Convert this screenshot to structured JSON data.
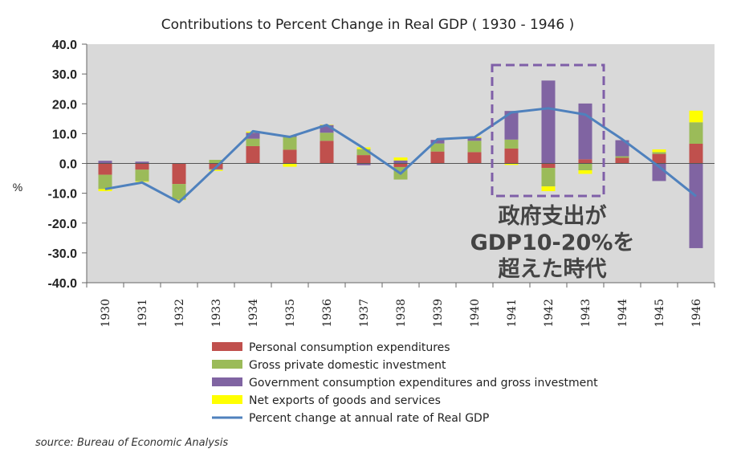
{
  "chart_data": {
    "type": "bar",
    "subtype": "stacked-bar-with-line",
    "title": "Contributions to Percent Change in Real GDP ( 1930 - 1946 )",
    "ylabel": "%",
    "xlabel": "",
    "ylim": [
      -40,
      40
    ],
    "yticks": [
      40,
      30,
      20,
      10,
      0,
      -10,
      -20,
      -30,
      -40
    ],
    "ytick_labels": [
      "40.0",
      "30.0",
      "20.0",
      "10.0",
      "0.0",
      "-10.0",
      "-20.0",
      "-30.0",
      "-40.0"
    ],
    "categories": [
      "1930",
      "1931",
      "1932",
      "1933",
      "1934",
      "1935",
      "1936",
      "1937",
      "1938",
      "1939",
      "1940",
      "1941",
      "1942",
      "1943",
      "1944",
      "1945",
      "1946"
    ],
    "series": [
      {
        "name": "Personal consumption expenditures",
        "color": "#c0504d",
        "values": [
          -3.8,
          -2.1,
          -6.9,
          -1.8,
          5.8,
          4.6,
          7.6,
          2.8,
          -1.2,
          4.0,
          3.8,
          5.0,
          -1.5,
          1.4,
          1.9,
          3.2,
          6.6
        ]
      },
      {
        "name": "Gross private domestic investment",
        "color": "#9bbb59",
        "values": [
          -4.8,
          -3.9,
          -5.1,
          1.2,
          2.5,
          4.3,
          2.7,
          2.0,
          -4.2,
          2.7,
          3.8,
          3.0,
          -6.2,
          -2.3,
          0.5,
          0.6,
          7.2
        ]
      },
      {
        "name": "Government consumption expenditures and gross investment",
        "color": "#8064a2",
        "values": [
          0.9,
          0.6,
          -0.1,
          -0.3,
          2.0,
          0.4,
          2.6,
          -0.6,
          1.0,
          1.2,
          1.0,
          9.6,
          27.8,
          18.7,
          5.4,
          -5.9,
          -28.4
        ]
      },
      {
        "name": "Net exports of goods and services",
        "color": "#ffff00",
        "values": [
          -0.7,
          -0.2,
          -0.2,
          -0.4,
          0.4,
          -1.1,
          0.1,
          0.6,
          1.0,
          0.0,
          0.3,
          -0.5,
          -1.6,
          -1.2,
          -0.1,
          0.9,
          3.9
        ]
      }
    ],
    "line": {
      "name": "Percent change at annual rate of Real GDP",
      "color": "#4f81bd",
      "values": [
        -8.6,
        -6.4,
        -13.0,
        -1.3,
        10.8,
        8.9,
        12.9,
        5.1,
        -3.4,
        8.1,
        8.8,
        17.1,
        18.5,
        16.4,
        8.1,
        -1.1,
        -11.0
      ]
    },
    "legend": {
      "placement": "bottom"
    },
    "grid": false,
    "annotations": [
      {
        "text": [
          "政府支出が",
          "GDP10-20%を",
          "超えた時代"
        ],
        "highlight": [
          "1941",
          "1942",
          "1943"
        ]
      }
    ],
    "plot_background": "#d9d9d9"
  },
  "source": "source: Bureau of Economic Analysis"
}
